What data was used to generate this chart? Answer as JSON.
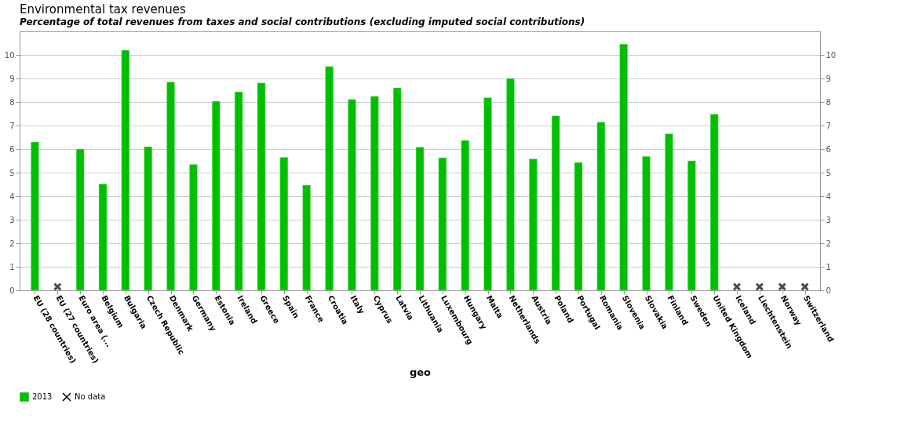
{
  "chart_data": {
    "type": "bar",
    "title": "Environmental tax revenues",
    "subtitle": "Percentage of total revenues from taxes and social contributions (excluding imputed social contributions)",
    "xlabel": "geo",
    "categories": [
      "EU (28 countries)",
      "EU (27 countries)",
      "Euro area (...",
      "Belgium",
      "Bulgaria",
      "Czech Republic",
      "Denmark",
      "Germany",
      "Estonia",
      "Ireland",
      "Greece",
      "Spain",
      "France",
      "Croatia",
      "Italy",
      "Cyprus",
      "Latvia",
      "Lithuania",
      "Luxembourg",
      "Hungary",
      "Malta",
      "Netherlands",
      "Austria",
      "Poland",
      "Portugal",
      "Romania",
      "Slovenia",
      "Slovakia",
      "Finland",
      "Sweden",
      "United Kingdom",
      "Iceland",
      "Liechtenstein",
      "Norway",
      "Switzerland"
    ],
    "series": [
      {
        "name": "2013",
        "color": "#00bf00",
        "values": [
          6.3,
          null,
          6.0,
          4.52,
          10.2,
          6.1,
          8.85,
          5.35,
          8.03,
          8.43,
          8.81,
          5.65,
          4.47,
          9.51,
          8.11,
          8.24,
          8.6,
          6.08,
          5.63,
          6.37,
          8.18,
          9.0,
          5.58,
          7.41,
          5.43,
          7.14,
          10.46,
          5.69,
          6.65,
          5.5,
          7.48,
          null,
          null,
          null,
          null
        ]
      },
      {
        "name": "No data",
        "type": "scatter",
        "marker": "cross",
        "color": "#000000",
        "values": [
          null,
          0.15,
          null,
          null,
          null,
          null,
          null,
          null,
          null,
          null,
          null,
          null,
          null,
          null,
          null,
          null,
          null,
          null,
          null,
          null,
          null,
          null,
          null,
          null,
          null,
          null,
          null,
          null,
          null,
          null,
          null,
          0.15,
          0.15,
          0.15,
          0.15
        ]
      }
    ],
    "ylim": [
      0,
      11
    ],
    "yticks": [
      0,
      1,
      2,
      3,
      4,
      5,
      6,
      7,
      8,
      9,
      10
    ],
    "y2lim": [
      0,
      11
    ],
    "y2ticks": [
      0,
      1,
      2,
      3,
      4,
      5,
      6,
      7,
      8,
      9,
      10
    ],
    "grid": "y",
    "legend": "bottom"
  }
}
